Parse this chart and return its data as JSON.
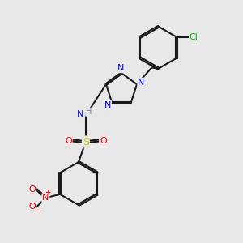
{
  "bg_color": "#e8e8e8",
  "bond_color": "#1a1a1a",
  "N_color": "#0000ff",
  "O_color": "#ff0000",
  "S_color": "#cccc00",
  "Cl_color": "#00bb00",
  "H_color": "#808080",
  "lw": 1.5,
  "dbo": 0.035,
  "xlim": [
    0,
    10
  ],
  "ylim": [
    0,
    10
  ]
}
